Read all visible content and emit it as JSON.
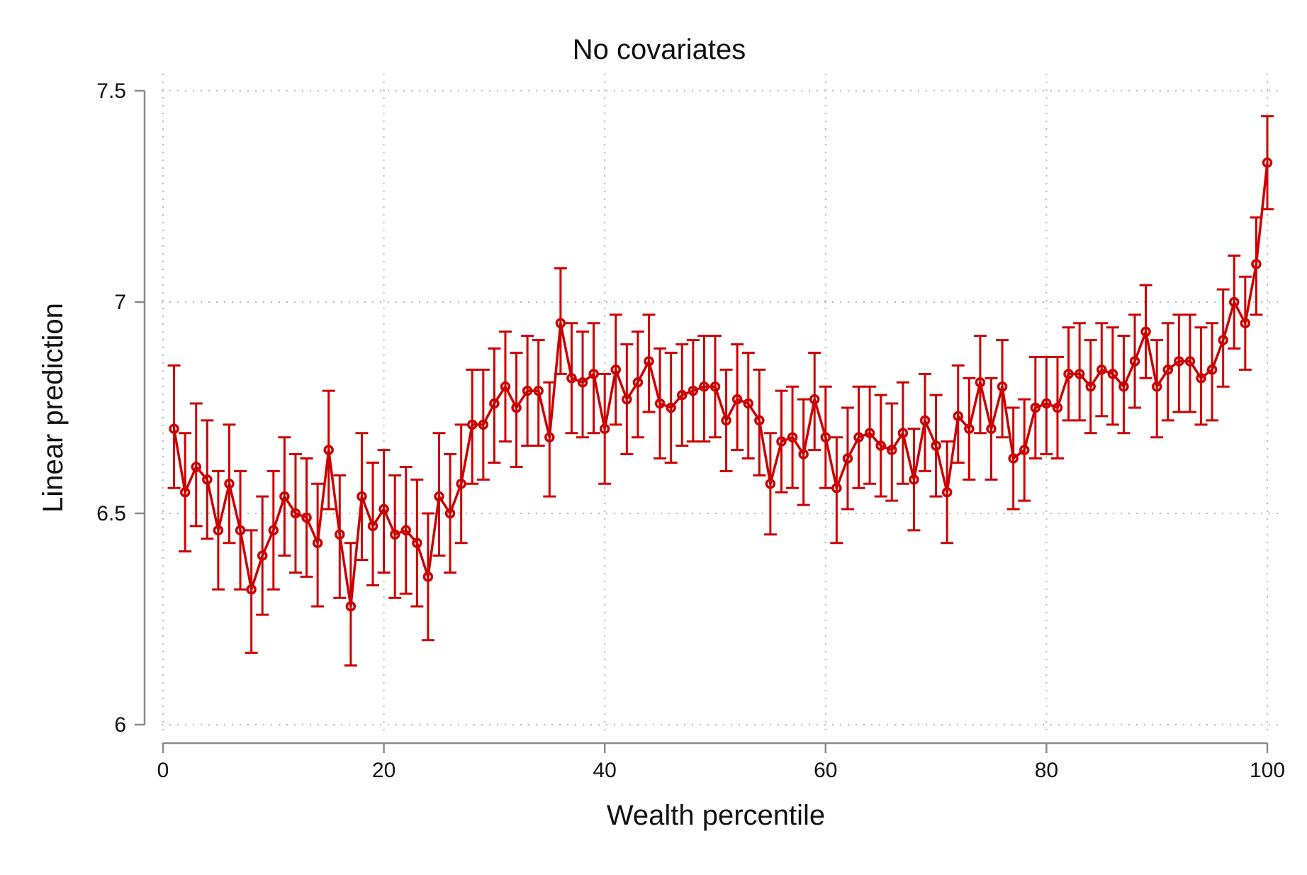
{
  "chart_data": {
    "type": "line",
    "title": "No covariates",
    "xlabel": "Wealth percentile",
    "ylabel": "Linear prediction",
    "xlim": [
      0,
      100
    ],
    "ylim": [
      6,
      7.5
    ],
    "xticks": [
      0,
      20,
      40,
      60,
      80,
      100
    ],
    "yticks": [
      6,
      6.5,
      7,
      7.5
    ],
    "xtick_labels": [
      "0",
      "20",
      "40",
      "60",
      "80",
      "100"
    ],
    "ytick_labels": [
      "6",
      "6.5",
      "7",
      "7.5"
    ],
    "grid": true,
    "error_bars": true,
    "color": "#cc0000",
    "series": [
      {
        "x": [
          1,
          2,
          3,
          4,
          5,
          6,
          7,
          8,
          9,
          10,
          11,
          12,
          13,
          14,
          15,
          16,
          17,
          18,
          19,
          20,
          21,
          22,
          23,
          24,
          25,
          26,
          27,
          28,
          29,
          30,
          31,
          32,
          33,
          34,
          35,
          36,
          37,
          38,
          39,
          40,
          41,
          42,
          43,
          44,
          45,
          46,
          47,
          48,
          49,
          50,
          51,
          52,
          53,
          54,
          55,
          56,
          57,
          58,
          59,
          60,
          61,
          62,
          63,
          64,
          65,
          66,
          67,
          68,
          69,
          70,
          71,
          72,
          73,
          74,
          75,
          76,
          77,
          78,
          79,
          80,
          81,
          82,
          83,
          84,
          85,
          86,
          87,
          88,
          89,
          90,
          91,
          92,
          93,
          94,
          95,
          96,
          97,
          98,
          99,
          100
        ],
        "y": [
          6.7,
          6.55,
          6.61,
          6.58,
          6.46,
          6.57,
          6.46,
          6.32,
          6.4,
          6.46,
          6.54,
          6.5,
          6.49,
          6.43,
          6.65,
          6.45,
          6.28,
          6.54,
          6.47,
          6.51,
          6.45,
          6.46,
          6.43,
          6.35,
          6.54,
          6.5,
          6.57,
          6.71,
          6.71,
          6.76,
          6.8,
          6.75,
          6.79,
          6.79,
          6.68,
          6.95,
          6.82,
          6.81,
          6.83,
          6.7,
          6.84,
          6.77,
          6.81,
          6.86,
          6.76,
          6.75,
          6.78,
          6.79,
          6.8,
          6.8,
          6.72,
          6.77,
          6.76,
          6.72,
          6.57,
          6.67,
          6.68,
          6.64,
          6.77,
          6.68,
          6.56,
          6.63,
          6.68,
          6.69,
          6.66,
          6.65,
          6.69,
          6.58,
          6.72,
          6.66,
          6.55,
          6.73,
          6.7,
          6.81,
          6.7,
          6.8,
          6.63,
          6.65,
          6.75,
          6.76,
          6.75,
          6.83,
          6.83,
          6.8,
          6.84,
          6.83,
          6.8,
          6.86,
          6.93,
          6.8,
          6.84,
          6.86,
          6.86,
          6.82,
          6.84,
          6.91,
          7.0,
          6.95,
          7.09,
          7.33
        ],
        "ci_low": [
          6.56,
          6.41,
          6.47,
          6.44,
          6.32,
          6.43,
          6.32,
          6.17,
          6.26,
          6.32,
          6.4,
          6.36,
          6.35,
          6.28,
          6.51,
          6.3,
          6.14,
          6.39,
          6.33,
          6.36,
          6.3,
          6.31,
          6.28,
          6.2,
          6.4,
          6.36,
          6.43,
          6.57,
          6.58,
          6.62,
          6.67,
          6.61,
          6.66,
          6.66,
          6.54,
          6.83,
          6.69,
          6.68,
          6.69,
          6.57,
          6.71,
          6.64,
          6.68,
          6.74,
          6.63,
          6.62,
          6.66,
          6.67,
          6.67,
          6.68,
          6.6,
          6.65,
          6.63,
          6.59,
          6.45,
          6.55,
          6.56,
          6.52,
          6.65,
          6.56,
          6.43,
          6.51,
          6.56,
          6.57,
          6.54,
          6.53,
          6.57,
          6.46,
          6.6,
          6.54,
          6.43,
          6.62,
          6.58,
          6.69,
          6.58,
          6.68,
          6.51,
          6.53,
          6.63,
          6.64,
          6.63,
          6.72,
          6.72,
          6.69,
          6.73,
          6.71,
          6.69,
          6.75,
          6.82,
          6.68,
          6.72,
          6.74,
          6.74,
          6.71,
          6.72,
          6.8,
          6.89,
          6.84,
          6.97,
          7.22
        ],
        "ci_high": [
          6.85,
          6.69,
          6.76,
          6.72,
          6.6,
          6.71,
          6.6,
          6.46,
          6.54,
          6.6,
          6.68,
          6.64,
          6.63,
          6.57,
          6.79,
          6.59,
          6.43,
          6.69,
          6.62,
          6.65,
          6.59,
          6.61,
          6.58,
          6.5,
          6.69,
          6.64,
          6.71,
          6.84,
          6.84,
          6.89,
          6.93,
          6.88,
          6.92,
          6.91,
          6.81,
          7.08,
          6.95,
          6.93,
          6.95,
          6.83,
          6.97,
          6.9,
          6.93,
          6.97,
          6.89,
          6.88,
          6.9,
          6.91,
          6.92,
          6.92,
          6.84,
          6.9,
          6.88,
          6.84,
          6.69,
          6.79,
          6.8,
          6.77,
          6.88,
          6.8,
          6.68,
          6.75,
          6.8,
          6.8,
          6.78,
          6.76,
          6.81,
          6.7,
          6.83,
          6.78,
          6.67,
          6.85,
          6.82,
          6.92,
          6.82,
          6.91,
          6.75,
          6.77,
          6.87,
          6.87,
          6.87,
          6.94,
          6.95,
          6.91,
          6.95,
          6.94,
          6.92,
          6.97,
          7.04,
          6.91,
          6.95,
          6.97,
          6.97,
          6.94,
          6.95,
          7.03,
          7.11,
          7.06,
          7.2,
          7.44
        ]
      }
    ]
  }
}
